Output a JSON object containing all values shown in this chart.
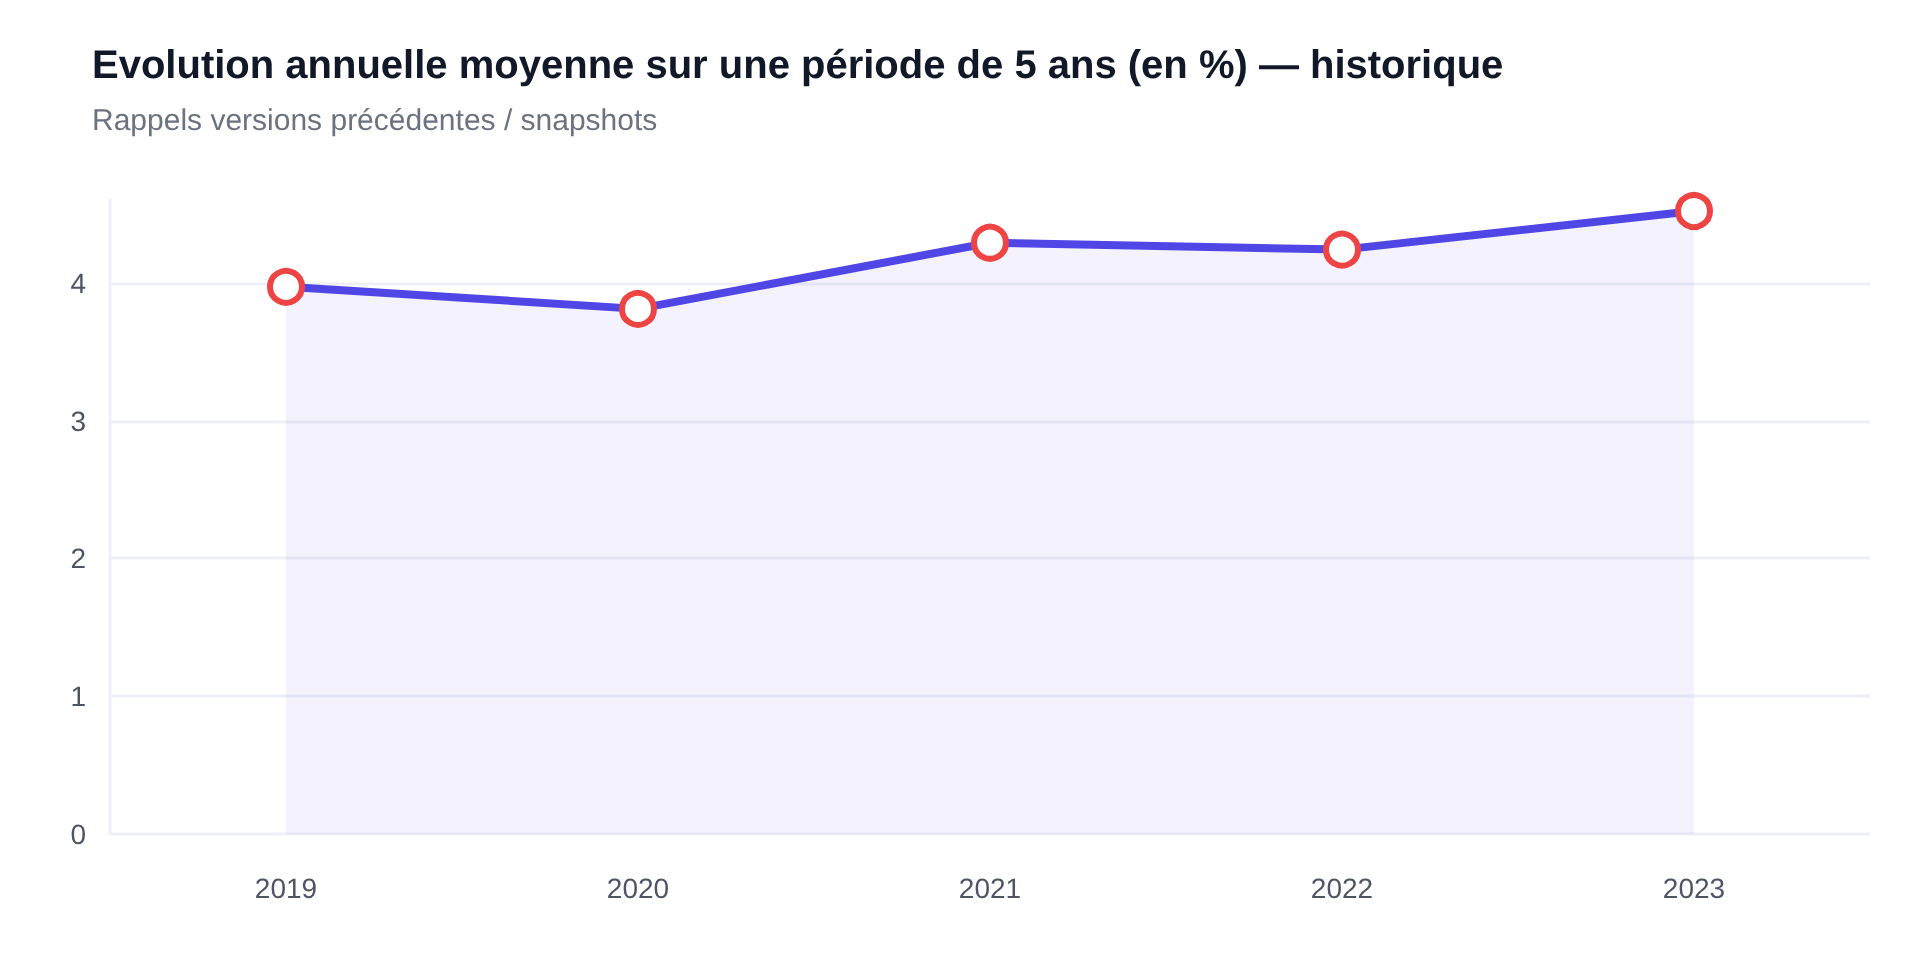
{
  "chart_data": {
    "type": "area",
    "title": "Evolution annuelle moyenne sur une période de 5 ans (en %) — historique",
    "subtitle": "Rappels versions précédentes / snapshots",
    "categories": [
      "2019",
      "2020",
      "2021",
      "2022",
      "2023"
    ],
    "series": [
      {
        "color": "#4f46e5",
        "colors": [
          "#ef4444",
          "#ef4444",
          "#ef4444",
          "#ef4444",
          "#ef4444"
        ],
        "values": [
          3.97,
          3.81,
          4.29,
          4.24,
          4.52
        ]
      }
    ],
    "ylim": [
      0,
      4.6
    ],
    "yticks": [
      0,
      1,
      2,
      3,
      4
    ],
    "grid": "y",
    "marker": "circle",
    "line_style": "solid"
  }
}
